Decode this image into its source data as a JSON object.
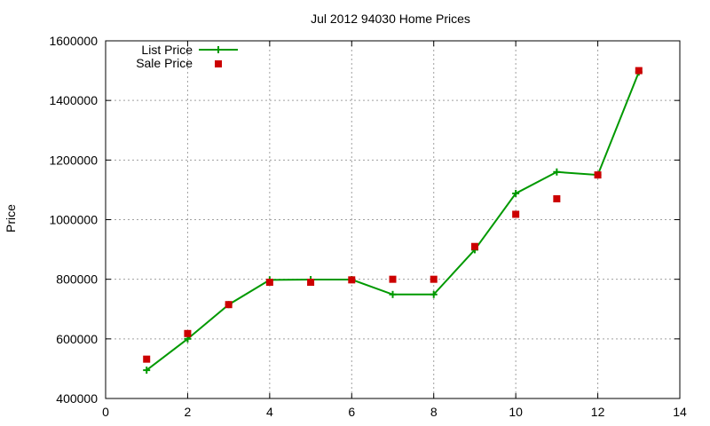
{
  "chart_data": {
    "type": "line",
    "title": "Jul 2012 94030 Home Prices",
    "xlabel": "",
    "ylabel": "Price",
    "xlim": [
      0,
      14
    ],
    "ylim": [
      400000,
      1600000
    ],
    "x_ticks": [
      0,
      2,
      4,
      6,
      8,
      10,
      12,
      14
    ],
    "y_ticks": [
      400000,
      600000,
      800000,
      1000000,
      1200000,
      1400000,
      1600000
    ],
    "x_tick_labels": [
      "0",
      "2",
      "4",
      "6",
      "8",
      "10",
      "12",
      "14"
    ],
    "y_tick_labels": [
      "400000",
      "600000",
      "800000",
      "1000000",
      "1200000",
      "1400000",
      "1600000"
    ],
    "grid": true,
    "legend_position": "top-left",
    "series": [
      {
        "name": "List Price",
        "style": "line-with-plus-markers",
        "color": "#009900",
        "points": [
          {
            "x": 1,
            "y": 495000
          },
          {
            "x": 2,
            "y": 600000
          },
          {
            "x": 3,
            "y": 715000
          },
          {
            "x": 4,
            "y": 798000
          },
          {
            "x": 5,
            "y": 799000
          },
          {
            "x": 6,
            "y": 799000
          },
          {
            "x": 7,
            "y": 749000
          },
          {
            "x": 8,
            "y": 749000
          },
          {
            "x": 9,
            "y": 899000
          },
          {
            "x": 10,
            "y": 1088000
          },
          {
            "x": 11,
            "y": 1160000
          },
          {
            "x": 12,
            "y": 1150000
          },
          {
            "x": 13,
            "y": 1495000
          }
        ]
      },
      {
        "name": "Sale Price",
        "style": "square-markers",
        "color": "#cc0000",
        "points": [
          {
            "x": 1,
            "y": 532000
          },
          {
            "x": 2,
            "y": 618000
          },
          {
            "x": 3,
            "y": 715000
          },
          {
            "x": 4,
            "y": 790000
          },
          {
            "x": 5,
            "y": 790000
          },
          {
            "x": 6,
            "y": 798000
          },
          {
            "x": 7,
            "y": 800000
          },
          {
            "x": 8,
            "y": 800000
          },
          {
            "x": 9,
            "y": 910000
          },
          {
            "x": 10,
            "y": 1018000
          },
          {
            "x": 11,
            "y": 1070000
          },
          {
            "x": 12,
            "y": 1150000
          },
          {
            "x": 13,
            "y": 1500000
          }
        ]
      }
    ]
  }
}
